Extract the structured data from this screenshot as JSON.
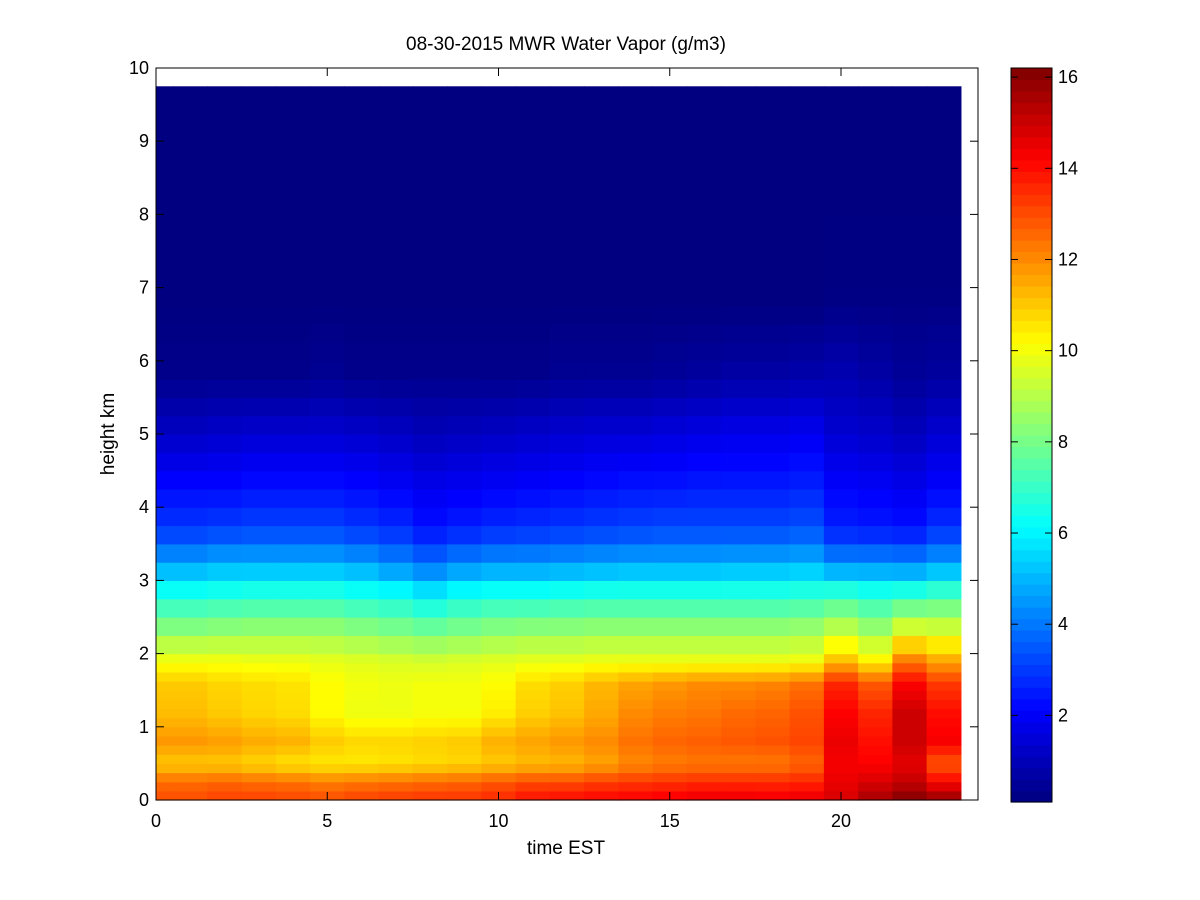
{
  "chart_data": {
    "type": "heatmap",
    "title": "08-30-2015 MWR Water Vapor (g/m3)",
    "xlabel": "time EST",
    "ylabel": "height km",
    "xlim": [
      0,
      24
    ],
    "ylim": [
      0,
      10
    ],
    "xticks": [
      0,
      5,
      10,
      15,
      20
    ],
    "yticks": [
      0,
      1,
      2,
      3,
      4,
      5,
      6,
      7,
      8,
      9,
      10
    ],
    "colorbar": {
      "range": [
        0.1,
        16.2
      ],
      "ticks": [
        2,
        4,
        6,
        8,
        10,
        12,
        14,
        16
      ],
      "colormap": "jet"
    },
    "data_extent": {
      "x": [
        0,
        23.5
      ],
      "y": [
        0,
        9.75
      ]
    },
    "time_columns": [
      0,
      1,
      2,
      3,
      4,
      5,
      6,
      7,
      8,
      9,
      10,
      11,
      12,
      13,
      14,
      15,
      16,
      17,
      18,
      19,
      20,
      21,
      22,
      23
    ],
    "column_width_hours": 1,
    "height_levels_km": [
      0.0,
      0.125,
      0.25,
      0.375,
      0.5,
      0.625,
      0.75,
      0.875,
      1.0,
      1.125,
      1.25,
      1.375,
      1.5,
      1.625,
      1.75,
      1.875,
      2.0,
      2.25,
      2.5,
      2.75,
      3.0,
      3.25,
      3.5,
      3.75,
      4.0,
      4.25,
      4.5,
      4.75,
      5.0,
      5.25,
      5.5,
      5.75,
      6.0,
      6.25,
      6.5,
      6.75,
      7.0,
      8.0,
      9.0,
      9.75
    ],
    "profiles": {
      "heights_km": [
        0,
        0.25,
        0.5,
        0.8,
        1.2,
        1.6,
        1.9,
        2.3,
        2.8,
        3.2,
        3.7,
        4.3,
        5.0,
        5.8,
        6.8,
        8.0,
        9.75
      ],
      "vapor_g_m3": [
        [
          13.0,
          12.5,
          11.0,
          11.8,
          11.2,
          11.0,
          10.0,
          8.4,
          6.6,
          4.8,
          3.0,
          2.2,
          1.2,
          0.3,
          0.1,
          0.1,
          0.1
        ],
        [
          13.0,
          12.5,
          11.0,
          11.8,
          11.2,
          11.0,
          10.0,
          8.4,
          6.6,
          4.8,
          3.0,
          2.2,
          1.2,
          0.3,
          0.1,
          0.1,
          0.1
        ],
        [
          13.2,
          12.6,
          11.0,
          11.7,
          11.0,
          10.8,
          10.0,
          8.5,
          6.7,
          5.0,
          3.1,
          2.2,
          1.3,
          0.3,
          0.1,
          0.1,
          0.1
        ],
        [
          13.2,
          12.5,
          10.8,
          11.5,
          10.8,
          10.7,
          9.9,
          8.6,
          6.8,
          5.0,
          3.2,
          2.3,
          1.4,
          0.3,
          0.1,
          0.1,
          0.1
        ],
        [
          13.1,
          12.4,
          10.6,
          11.4,
          10.7,
          10.6,
          9.9,
          8.6,
          6.8,
          5.0,
          3.2,
          2.3,
          1.4,
          0.3,
          0.1,
          0.1,
          0.1
        ],
        [
          13.0,
          12.2,
          10.5,
          11.0,
          10.2,
          10.2,
          9.8,
          8.6,
          6.8,
          5.0,
          3.2,
          2.3,
          1.4,
          0.4,
          0.1,
          0.1,
          0.1
        ],
        [
          13.2,
          12.3,
          10.5,
          10.8,
          9.9,
          10.0,
          9.7,
          8.4,
          6.6,
          4.8,
          3.0,
          2.2,
          1.3,
          0.3,
          0.1,
          0.1,
          0.1
        ],
        [
          13.3,
          12.4,
          10.6,
          10.8,
          9.9,
          9.9,
          9.6,
          8.2,
          6.4,
          4.4,
          2.8,
          2.0,
          1.2,
          0.3,
          0.1,
          0.1,
          0.1
        ],
        [
          13.4,
          12.5,
          10.7,
          10.9,
          10.0,
          10.0,
          9.5,
          8.0,
          6.0,
          4.0,
          2.4,
          1.8,
          1.0,
          0.3,
          0.1,
          0.1,
          0.1
        ],
        [
          13.4,
          12.6,
          10.8,
          11.0,
          10.0,
          10.0,
          9.6,
          8.2,
          6.4,
          4.4,
          2.6,
          1.9,
          1.1,
          0.3,
          0.1,
          0.1,
          0.1
        ],
        [
          13.6,
          12.8,
          11.0,
          11.4,
          10.4,
          10.2,
          9.7,
          8.4,
          6.6,
          4.6,
          2.8,
          2.0,
          1.2,
          0.3,
          0.1,
          0.1,
          0.1
        ],
        [
          14.0,
          13.0,
          11.2,
          11.6,
          10.9,
          10.7,
          9.8,
          8.5,
          6.6,
          4.6,
          2.9,
          2.1,
          1.3,
          0.3,
          0.1,
          0.1,
          0.1
        ],
        [
          14.1,
          13.0,
          11.3,
          11.8,
          11.1,
          10.9,
          9.8,
          8.5,
          6.7,
          4.7,
          3.0,
          2.2,
          1.4,
          0.4,
          0.1,
          0.1,
          0.1
        ],
        [
          14.2,
          13.2,
          11.6,
          12.0,
          11.5,
          11.3,
          9.9,
          8.6,
          6.8,
          4.8,
          3.1,
          2.3,
          1.5,
          0.4,
          0.1,
          0.1,
          0.1
        ],
        [
          14.3,
          13.3,
          12.0,
          12.4,
          12.0,
          11.6,
          9.9,
          8.6,
          6.8,
          4.9,
          3.2,
          2.4,
          1.5,
          0.4,
          0.1,
          0.1,
          0.1
        ],
        [
          14.4,
          13.4,
          12.2,
          12.6,
          12.2,
          11.8,
          9.9,
          8.6,
          6.8,
          4.9,
          3.3,
          2.4,
          1.6,
          0.5,
          0.1,
          0.1,
          0.1
        ],
        [
          14.6,
          13.5,
          12.3,
          12.7,
          12.3,
          12.0,
          9.9,
          8.6,
          6.8,
          4.9,
          3.3,
          2.5,
          1.7,
          0.6,
          0.1,
          0.1,
          0.1
        ],
        [
          14.6,
          13.5,
          12.3,
          12.8,
          12.5,
          12.0,
          9.9,
          8.6,
          6.8,
          5.0,
          3.3,
          2.5,
          1.8,
          0.7,
          0.1,
          0.1,
          0.1
        ],
        [
          14.5,
          13.5,
          12.3,
          12.9,
          12.6,
          12.1,
          9.9,
          8.6,
          6.8,
          5.0,
          3.3,
          2.5,
          1.8,
          0.7,
          0.1,
          0.1,
          0.1
        ],
        [
          14.6,
          13.6,
          12.6,
          13.1,
          12.9,
          12.4,
          10.0,
          8.7,
          6.9,
          5.1,
          3.4,
          2.6,
          1.9,
          0.8,
          0.1,
          0.1,
          0.1
        ],
        [
          14.8,
          14.5,
          14.3,
          14.5,
          14.2,
          13.6,
          11.2,
          9.3,
          7.1,
          4.5,
          2.6,
          2.1,
          1.4,
          0.9,
          0.2,
          0.1,
          0.1
        ],
        [
          15.6,
          14.8,
          14.2,
          14.0,
          13.6,
          12.8,
          10.4,
          8.7,
          6.8,
          4.5,
          2.5,
          2.0,
          1.3,
          0.7,
          0.2,
          0.1,
          0.1
        ],
        [
          16.2,
          15.1,
          14.6,
          15.0,
          15.0,
          14.2,
          12.3,
          9.8,
          7.0,
          4.4,
          2.4,
          1.8,
          1.1,
          0.5,
          0.2,
          0.1,
          0.1
        ],
        [
          15.9,
          14.2,
          12.8,
          14.3,
          14.0,
          13.3,
          11.6,
          9.6,
          7.3,
          4.8,
          2.9,
          2.1,
          1.4,
          0.6,
          0.2,
          0.1,
          0.1
        ]
      ]
    }
  }
}
